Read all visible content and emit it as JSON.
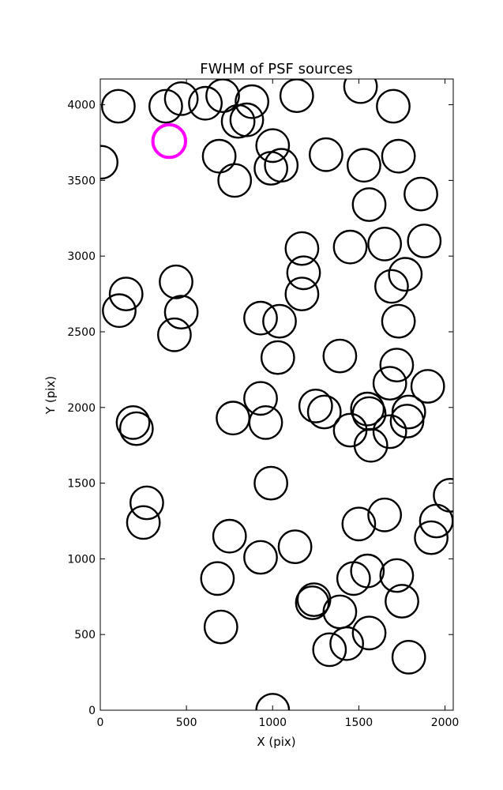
{
  "chart_data": {
    "type": "scatter",
    "title": "FWHM of PSF sources",
    "xlabel": "X (pix)",
    "ylabel": "Y (pix)",
    "xlim": [
      0,
      2048
    ],
    "ylim": [
      0,
      4170
    ],
    "xticks": [
      0,
      500,
      1000,
      1500,
      2000
    ],
    "yticks": [
      0,
      500,
      1000,
      1500,
      2000,
      2500,
      3000,
      3500,
      4000
    ],
    "grid": false,
    "marker": "open-circle",
    "circle_radius_xunits": 95,
    "colors": {
      "default": "#000000",
      "highlight": "#ff00ff"
    },
    "points": [
      {
        "x": 105,
        "y": 3990
      },
      {
        "x": 380,
        "y": 3990
      },
      {
        "x": 470,
        "y": 4040
      },
      {
        "x": 610,
        "y": 4010
      },
      {
        "x": 710,
        "y": 4060
      },
      {
        "x": 880,
        "y": 4020
      },
      {
        "x": 850,
        "y": 3900
      },
      {
        "x": 800,
        "y": 3890
      },
      {
        "x": 1140,
        "y": 4060
      },
      {
        "x": 1510,
        "y": 4120
      },
      {
        "x": 1700,
        "y": 3990
      },
      {
        "x": 400,
        "y": 3760,
        "highlight": true
      },
      {
        "x": 5,
        "y": 3620
      },
      {
        "x": 690,
        "y": 3660
      },
      {
        "x": 780,
        "y": 3500
      },
      {
        "x": 1000,
        "y": 3730
      },
      {
        "x": 990,
        "y": 3580
      },
      {
        "x": 1050,
        "y": 3600
      },
      {
        "x": 1310,
        "y": 3670
      },
      {
        "x": 1530,
        "y": 3600
      },
      {
        "x": 1730,
        "y": 3660
      },
      {
        "x": 1860,
        "y": 3410
      },
      {
        "x": 1560,
        "y": 3340
      },
      {
        "x": 1880,
        "y": 3100
      },
      {
        "x": 1650,
        "y": 3080
      },
      {
        "x": 1450,
        "y": 3060
      },
      {
        "x": 1170,
        "y": 3050
      },
      {
        "x": 1180,
        "y": 2890
      },
      {
        "x": 1170,
        "y": 2750
      },
      {
        "x": 440,
        "y": 2830
      },
      {
        "x": 150,
        "y": 2750
      },
      {
        "x": 110,
        "y": 2640
      },
      {
        "x": 470,
        "y": 2630
      },
      {
        "x": 430,
        "y": 2480
      },
      {
        "x": 930,
        "y": 2590
      },
      {
        "x": 1040,
        "y": 2570
      },
      {
        "x": 1730,
        "y": 2570
      },
      {
        "x": 1770,
        "y": 2880
      },
      {
        "x": 1690,
        "y": 2800
      },
      {
        "x": 1030,
        "y": 2330
      },
      {
        "x": 1390,
        "y": 2340
      },
      {
        "x": 1720,
        "y": 2280
      },
      {
        "x": 1680,
        "y": 2160
      },
      {
        "x": 1900,
        "y": 2140
      },
      {
        "x": 930,
        "y": 2060
      },
      {
        "x": 960,
        "y": 1900
      },
      {
        "x": 770,
        "y": 1930
      },
      {
        "x": 190,
        "y": 1900
      },
      {
        "x": 210,
        "y": 1860
      },
      {
        "x": 1250,
        "y": 2010
      },
      {
        "x": 1300,
        "y": 1970
      },
      {
        "x": 1450,
        "y": 1850
      },
      {
        "x": 1550,
        "y": 1990
      },
      {
        "x": 1560,
        "y": 1960
      },
      {
        "x": 1680,
        "y": 1840
      },
      {
        "x": 1570,
        "y": 1750
      },
      {
        "x": 1790,
        "y": 1970
      },
      {
        "x": 1780,
        "y": 1910
      },
      {
        "x": 990,
        "y": 1500
      },
      {
        "x": 2030,
        "y": 1420
      },
      {
        "x": 270,
        "y": 1370
      },
      {
        "x": 250,
        "y": 1240
      },
      {
        "x": 750,
        "y": 1150
      },
      {
        "x": 930,
        "y": 1010
      },
      {
        "x": 1130,
        "y": 1080
      },
      {
        "x": 1500,
        "y": 1230
      },
      {
        "x": 1650,
        "y": 1290
      },
      {
        "x": 1950,
        "y": 1250
      },
      {
        "x": 1920,
        "y": 1140
      },
      {
        "x": 680,
        "y": 870
      },
      {
        "x": 700,
        "y": 550
      },
      {
        "x": 1230,
        "y": 710
      },
      {
        "x": 1240,
        "y": 730
      },
      {
        "x": 1390,
        "y": 650
      },
      {
        "x": 1470,
        "y": 870
      },
      {
        "x": 1550,
        "y": 920
      },
      {
        "x": 1720,
        "y": 890
      },
      {
        "x": 1750,
        "y": 720
      },
      {
        "x": 1560,
        "y": 510
      },
      {
        "x": 1430,
        "y": 440
      },
      {
        "x": 1330,
        "y": 400
      },
      {
        "x": 1790,
        "y": 350
      },
      {
        "x": 1000,
        "y": 0
      }
    ]
  }
}
